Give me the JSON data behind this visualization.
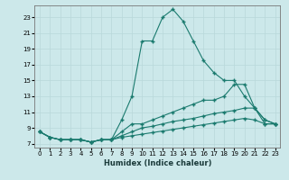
{
  "title": "",
  "xlabel": "Humidex (Indice chaleur)",
  "bg_color": "#cce8ea",
  "line_color": "#1a7a6e",
  "xlim": [
    -0.5,
    23.5
  ],
  "ylim": [
    6.5,
    24.5
  ],
  "xticks": [
    0,
    1,
    2,
    3,
    4,
    5,
    6,
    7,
    8,
    9,
    10,
    11,
    12,
    13,
    14,
    15,
    16,
    17,
    18,
    19,
    20,
    21,
    22,
    23
  ],
  "yticks": [
    7,
    9,
    11,
    13,
    15,
    17,
    19,
    21,
    23
  ],
  "lines": [
    {
      "x": [
        0,
        1,
        2,
        3,
        4,
        5,
        6,
        7,
        8,
        9,
        10,
        11,
        12,
        13,
        14,
        15,
        16,
        17,
        18,
        19,
        20,
        21,
        22,
        23
      ],
      "y": [
        8.5,
        7.8,
        7.5,
        7.5,
        7.5,
        7.2,
        7.5,
        7.5,
        10.0,
        13.0,
        20.0,
        20.0,
        23.0,
        24.0,
        22.5,
        20.0,
        17.5,
        16.0,
        15.0,
        15.0,
        13.0,
        11.5,
        9.5,
        9.5
      ]
    },
    {
      "x": [
        0,
        1,
        2,
        3,
        4,
        5,
        6,
        7,
        8,
        9,
        10,
        11,
        12,
        13,
        14,
        15,
        16,
        17,
        18,
        19,
        20,
        21,
        22,
        23
      ],
      "y": [
        8.5,
        7.8,
        7.5,
        7.5,
        7.5,
        7.2,
        7.5,
        7.5,
        8.5,
        9.5,
        9.5,
        10.0,
        10.5,
        11.0,
        11.5,
        12.0,
        12.5,
        12.5,
        13.0,
        14.5,
        14.5,
        11.5,
        10.0,
        9.5
      ]
    },
    {
      "x": [
        0,
        1,
        2,
        3,
        4,
        5,
        6,
        7,
        8,
        9,
        10,
        11,
        12,
        13,
        14,
        15,
        16,
        17,
        18,
        19,
        20,
        21,
        22,
        23
      ],
      "y": [
        8.5,
        7.8,
        7.5,
        7.5,
        7.5,
        7.2,
        7.5,
        7.5,
        8.0,
        8.5,
        9.0,
        9.2,
        9.5,
        9.8,
        10.0,
        10.2,
        10.5,
        10.8,
        11.0,
        11.2,
        11.5,
        11.5,
        10.0,
        9.5
      ]
    },
    {
      "x": [
        0,
        1,
        2,
        3,
        4,
        5,
        6,
        7,
        8,
        9,
        10,
        11,
        12,
        13,
        14,
        15,
        16,
        17,
        18,
        19,
        20,
        21,
        22,
        23
      ],
      "y": [
        8.5,
        7.8,
        7.5,
        7.5,
        7.5,
        7.2,
        7.5,
        7.5,
        7.8,
        8.0,
        8.2,
        8.4,
        8.6,
        8.8,
        9.0,
        9.2,
        9.4,
        9.6,
        9.8,
        10.0,
        10.2,
        10.0,
        9.5,
        9.5
      ]
    }
  ]
}
